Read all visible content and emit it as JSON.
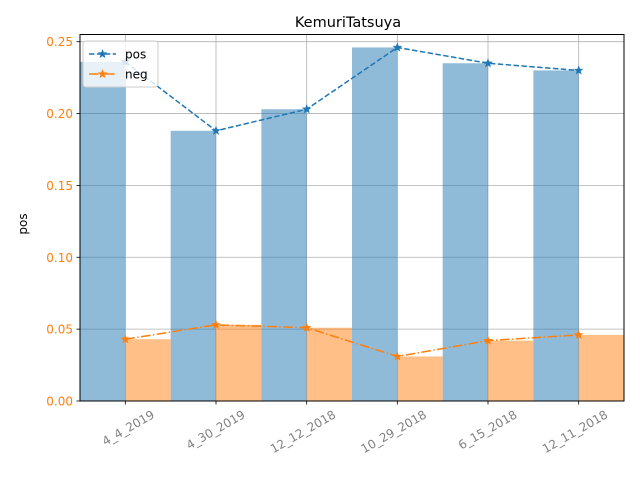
{
  "chart_data": {
    "type": "bar",
    "title": "KemuriTatsuya",
    "xlabel": "",
    "ylabel": "pos",
    "categories": [
      "4_4_2019",
      "4_30_2019",
      "12_12_2018",
      "10_29_2018",
      "6_15_2018",
      "12_11_2018"
    ],
    "series": [
      {
        "name": "pos",
        "values": [
          0.236,
          0.188,
          0.203,
          0.246,
          0.235,
          0.23
        ],
        "color": "#1f77b4",
        "bar_alpha": 0.5,
        "line_style": "dashed",
        "marker": "star"
      },
      {
        "name": "neg",
        "values": [
          0.043,
          0.053,
          0.051,
          0.031,
          0.042,
          0.046
        ],
        "color": "#ff7f0e",
        "bar_alpha": 0.5,
        "line_style": "dashdot",
        "marker": "star"
      }
    ],
    "ylim": [
      0,
      0.255
    ],
    "yticks": [
      "0.00",
      "0.05",
      "0.10",
      "0.15",
      "0.20",
      "0.25"
    ],
    "ytick_values": [
      0,
      0.05,
      0.1,
      0.15,
      0.2,
      0.25
    ],
    "ytick_color": "#ff7f0e",
    "xtick_color": "#808080",
    "grid": true,
    "legend": "top-left"
  }
}
